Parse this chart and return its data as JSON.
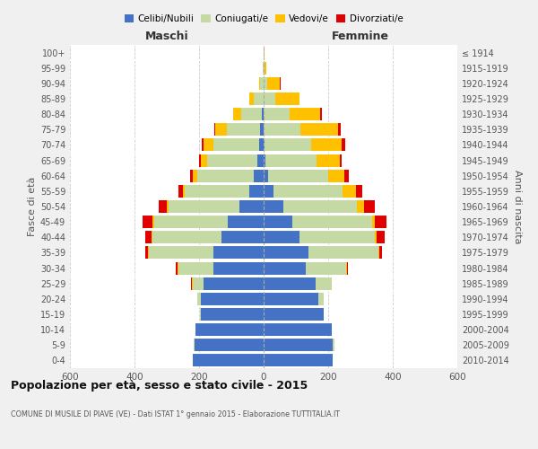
{
  "age_groups": [
    "0-4",
    "5-9",
    "10-14",
    "15-19",
    "20-24",
    "25-29",
    "30-34",
    "35-39",
    "40-44",
    "45-49",
    "50-54",
    "55-59",
    "60-64",
    "65-69",
    "70-74",
    "75-79",
    "80-84",
    "85-89",
    "90-94",
    "95-99",
    "100+"
  ],
  "birth_years": [
    "2010-2014",
    "2005-2009",
    "2000-2004",
    "1995-1999",
    "1990-1994",
    "1985-1989",
    "1980-1984",
    "1975-1979",
    "1970-1974",
    "1965-1969",
    "1960-1964",
    "1955-1959",
    "1950-1954",
    "1945-1949",
    "1940-1944",
    "1935-1939",
    "1930-1934",
    "1925-1929",
    "1920-1924",
    "1915-1919",
    "≤ 1914"
  ],
  "maschi_celibi": [
    220,
    215,
    210,
    195,
    195,
    185,
    155,
    155,
    130,
    110,
    75,
    45,
    30,
    20,
    15,
    10,
    5,
    0,
    0,
    0,
    0
  ],
  "maschi_coniugati": [
    0,
    3,
    0,
    2,
    10,
    35,
    110,
    200,
    215,
    230,
    220,
    200,
    175,
    155,
    140,
    105,
    65,
    30,
    10,
    2,
    0
  ],
  "maschi_vedovi": [
    0,
    0,
    0,
    0,
    0,
    2,
    2,
    3,
    3,
    5,
    5,
    5,
    15,
    20,
    30,
    35,
    25,
    15,
    5,
    0,
    0
  ],
  "maschi_divorziati": [
    0,
    0,
    0,
    0,
    0,
    2,
    5,
    8,
    20,
    30,
    25,
    15,
    8,
    5,
    8,
    3,
    0,
    0,
    0,
    0,
    0
  ],
  "femmine_celibi": [
    215,
    215,
    210,
    185,
    170,
    160,
    130,
    140,
    110,
    90,
    60,
    30,
    15,
    5,
    2,
    0,
    0,
    0,
    0,
    0,
    0
  ],
  "femmine_coniugati": [
    0,
    5,
    0,
    2,
    15,
    50,
    125,
    215,
    235,
    245,
    230,
    215,
    185,
    160,
    145,
    115,
    80,
    35,
    10,
    2,
    0
  ],
  "femmine_vedovi": [
    0,
    0,
    0,
    0,
    0,
    0,
    2,
    3,
    5,
    10,
    20,
    40,
    50,
    70,
    95,
    115,
    95,
    75,
    40,
    5,
    2
  ],
  "femmine_divorziati": [
    0,
    0,
    0,
    0,
    0,
    2,
    5,
    10,
    25,
    35,
    35,
    20,
    15,
    8,
    10,
    8,
    5,
    2,
    2,
    0,
    0
  ],
  "colors": {
    "celibi": "#4472c4",
    "coniugati": "#c5d9a5",
    "vedovi": "#ffc000",
    "divorziati": "#e00000"
  },
  "title": "Popolazione per età, sesso e stato civile - 2015",
  "subtitle": "COMUNE DI MUSILE DI PIAVE (VE) - Dati ISTAT 1° gennaio 2015 - Elaborazione TUTTITALIA.IT",
  "xlabel_left": "Maschi",
  "xlabel_right": "Femmine",
  "ylabel_left": "Fasce di età",
  "ylabel_right": "Anni di nascita",
  "xlim": 600,
  "bg_color": "#f0f0f0",
  "plot_bg": "#ffffff",
  "legend_labels": [
    "Celibi/Nubili",
    "Coniugati/e",
    "Vedovi/e",
    "Divorziati/e"
  ]
}
